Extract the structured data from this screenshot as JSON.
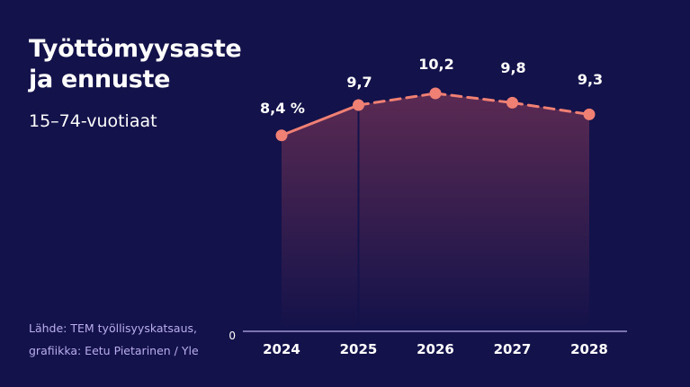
{
  "title_line1": "Työttömyysaste",
  "title_line2": "ja ennuste",
  "subtitle": "15–74-vuotiaat",
  "source_line1": "Lähde: TEM työllisyyskatsaus,",
  "source_line2": "grafiikka: Eetu Pietarinen / Yle",
  "colors": {
    "background": "#13124a",
    "line": "#f07f74",
    "area_top": "#5a2a52",
    "axis": "#b9aef0"
  },
  "chart_data": {
    "type": "line",
    "title": "Työttömyysaste ja ennuste",
    "subtitle": "15–74-vuotiaat",
    "categories": [
      "2024",
      "2025",
      "2026",
      "2027",
      "2028"
    ],
    "values": [
      8.4,
      9.7,
      10.2,
      9.8,
      9.3
    ],
    "labels": [
      "8,4 %",
      "9,7",
      "10,2",
      "9,8",
      "9,3"
    ],
    "line_style": [
      "solid",
      "dashed",
      "dashed",
      "dashed"
    ],
    "area_fill": true,
    "y_tick_labels": [
      "0"
    ],
    "ylim": [
      0,
      10.2
    ],
    "grid": false
  }
}
